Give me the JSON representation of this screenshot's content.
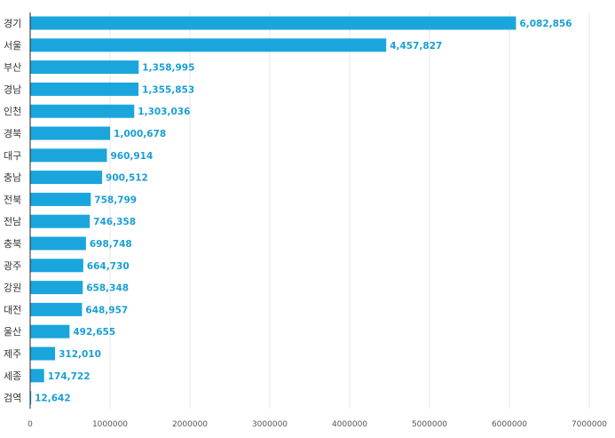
{
  "chart_data": {
    "type": "bar",
    "orientation": "horizontal",
    "categories": [
      "경기",
      "서울",
      "부산",
      "경남",
      "인천",
      "경북",
      "대구",
      "충남",
      "전북",
      "전남",
      "충북",
      "광주",
      "강원",
      "대전",
      "울산",
      "제주",
      "세종",
      "검역"
    ],
    "values": [
      6082856,
      4457827,
      1358995,
      1355853,
      1303036,
      1000678,
      960914,
      900512,
      758799,
      746358,
      698748,
      664730,
      658348,
      648957,
      492655,
      312010,
      174722,
      12642
    ],
    "value_labels": [
      "6,082,856",
      "4,457,827",
      "1,358,995",
      "1,355,853",
      "1,303,036",
      "1,000,678",
      "960,914",
      "900,512",
      "758,799",
      "746,358",
      "698,748",
      "664,730",
      "658,348",
      "648,957",
      "492,655",
      "312,010",
      "174,722",
      "12,642"
    ],
    "xlim": [
      0,
      7000000
    ],
    "x_ticks": [
      0,
      1000000,
      2000000,
      3000000,
      4000000,
      5000000,
      6000000,
      7000000
    ],
    "x_tick_labels": [
      "0",
      "1000000",
      "2000000",
      "3000000",
      "4000000",
      "5000000",
      "6000000",
      "7000000"
    ],
    "grid": true,
    "colors": {
      "bar": "#1aa6dd",
      "label": "#1a9fd4",
      "grid": "#e6e6e6",
      "axis": "#222222"
    }
  }
}
